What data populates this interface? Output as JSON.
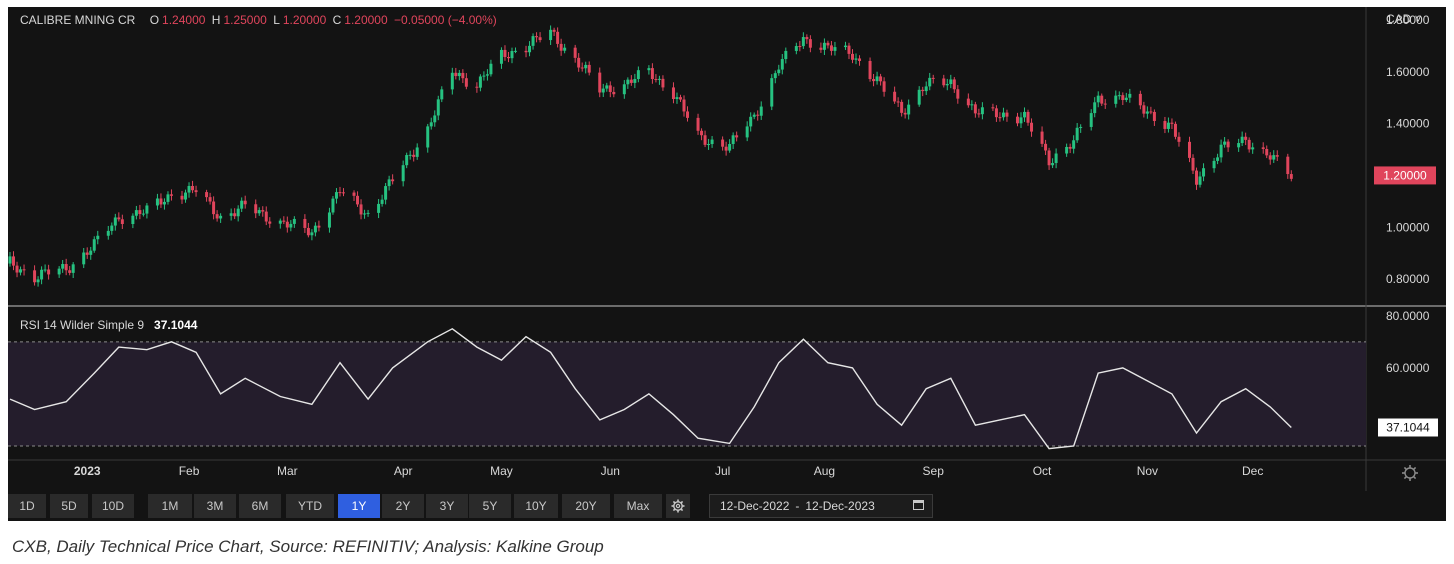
{
  "header": {
    "instrument": "CALIBRE MNING CR",
    "open_label": "O",
    "open": "1.24000",
    "high_label": "H",
    "high": "1.25000",
    "low_label": "L",
    "low": "1.20000",
    "close_label": "C",
    "close": "1.20000",
    "change": "−0.05000 (−4.00%)",
    "currency": "CAD ˅"
  },
  "rsi_header": {
    "label": "RSI 14 Wilder Simple 9",
    "value": "37.1044"
  },
  "colors": {
    "up": "#26c281",
    "down": "#e0455c",
    "background": "#131313",
    "rsi_band": "#241d2c",
    "price_tag": "#e0455c"
  },
  "toolbar": {
    "timeframes": [
      "1D",
      "5D",
      "10D",
      "1M",
      "3M",
      "6M",
      "YTD",
      "1Y",
      "2Y",
      "3Y",
      "5Y",
      "10Y",
      "20Y",
      "Max"
    ],
    "active": "1Y",
    "settings_icon": "gear-icon",
    "date_start": "12-Dec-2022",
    "date_sep": "-",
    "date_end": "12-Dec-2023",
    "calendar_icon": "calendar-icon"
  },
  "caption": "CXB, Daily Technical Price Chart, Source: REFINITIV; Analysis: Kalkine Group",
  "chart_data": [
    {
      "type": "candlestick",
      "title": "CALIBRE MNING CR",
      "y_ticks": [
        "0.80000",
        "1.00000",
        "1.20000",
        "1.40000",
        "1.60000",
        "1.80000"
      ],
      "ylim": [
        0.7,
        1.85
      ],
      "last_price_label": "1.20000",
      "x_ticks": [
        "2023",
        "Feb",
        "Mar",
        "Apr",
        "May",
        "Jun",
        "Jul",
        "Aug",
        "Sep",
        "Oct",
        "Nov",
        "Dec"
      ],
      "x_tick_dates": [
        "2023-01-03",
        "2023-02-01",
        "2023-03-01",
        "2023-04-03",
        "2023-05-01",
        "2023-06-01",
        "2023-07-03",
        "2023-08-01",
        "2023-09-01",
        "2023-10-02",
        "2023-11-01",
        "2023-12-01"
      ],
      "xlim": [
        "2022-12-12",
        "2023-12-31"
      ],
      "closes": [
        {
          "date": "2022-12-12",
          "close": 0.86
        },
        {
          "date": "2022-12-19",
          "close": 0.81
        },
        {
          "date": "2022-12-28",
          "close": 0.84
        },
        {
          "date": "2023-01-05",
          "close": 0.93
        },
        {
          "date": "2023-01-12",
          "close": 1.04
        },
        {
          "date": "2023-01-20",
          "close": 1.06
        },
        {
          "date": "2023-01-27",
          "close": 1.13
        },
        {
          "date": "2023-02-03",
          "close": 1.14
        },
        {
          "date": "2023-02-10",
          "close": 1.04
        },
        {
          "date": "2023-02-17",
          "close": 1.08
        },
        {
          "date": "2023-02-27",
          "close": 1.02
        },
        {
          "date": "2023-03-08",
          "close": 0.98
        },
        {
          "date": "2023-03-16",
          "close": 1.14
        },
        {
          "date": "2023-03-24",
          "close": 1.05
        },
        {
          "date": "2023-03-31",
          "close": 1.18
        },
        {
          "date": "2023-04-10",
          "close": 1.38
        },
        {
          "date": "2023-04-17",
          "close": 1.6
        },
        {
          "date": "2023-04-24",
          "close": 1.55
        },
        {
          "date": "2023-05-01",
          "close": 1.66
        },
        {
          "date": "2023-05-08",
          "close": 1.7
        },
        {
          "date": "2023-05-15",
          "close": 1.75
        },
        {
          "date": "2023-05-22",
          "close": 1.65
        },
        {
          "date": "2023-05-29",
          "close": 1.53
        },
        {
          "date": "2023-06-05",
          "close": 1.55
        },
        {
          "date": "2023-06-12",
          "close": 1.6
        },
        {
          "date": "2023-06-19",
          "close": 1.52
        },
        {
          "date": "2023-06-26",
          "close": 1.35
        },
        {
          "date": "2023-07-05",
          "close": 1.31
        },
        {
          "date": "2023-07-12",
          "close": 1.43
        },
        {
          "date": "2023-07-19",
          "close": 1.62
        },
        {
          "date": "2023-07-26",
          "close": 1.73
        },
        {
          "date": "2023-08-02",
          "close": 1.69
        },
        {
          "date": "2023-08-09",
          "close": 1.67
        },
        {
          "date": "2023-08-16",
          "close": 1.56
        },
        {
          "date": "2023-08-23",
          "close": 1.45
        },
        {
          "date": "2023-08-30",
          "close": 1.55
        },
        {
          "date": "2023-09-06",
          "close": 1.56
        },
        {
          "date": "2023-09-13",
          "close": 1.44
        },
        {
          "date": "2023-09-20",
          "close": 1.44
        },
        {
          "date": "2023-09-27",
          "close": 1.42
        },
        {
          "date": "2023-10-04",
          "close": 1.26
        },
        {
          "date": "2023-10-11",
          "close": 1.33
        },
        {
          "date": "2023-10-18",
          "close": 1.5
        },
        {
          "date": "2023-10-25",
          "close": 1.5
        },
        {
          "date": "2023-11-01",
          "close": 1.45
        },
        {
          "date": "2023-11-08",
          "close": 1.38
        },
        {
          "date": "2023-11-15",
          "close": 1.19
        },
        {
          "date": "2023-11-22",
          "close": 1.3
        },
        {
          "date": "2023-11-29",
          "close": 1.34
        },
        {
          "date": "2023-12-06",
          "close": 1.27
        },
        {
          "date": "2023-12-12",
          "close": 1.2
        }
      ]
    },
    {
      "type": "line",
      "title": "RSI 14 Wilder Simple 9",
      "y_ticks": [
        "60.0000",
        "80.0000"
      ],
      "ylim": [
        25,
        83
      ],
      "bands": [
        30,
        70
      ],
      "last_value_label": "37.1044",
      "x": [
        "2022-12-12",
        "2022-12-19",
        "2022-12-28",
        "2023-01-05",
        "2023-01-12",
        "2023-01-20",
        "2023-01-27",
        "2023-02-03",
        "2023-02-10",
        "2023-02-17",
        "2023-02-27",
        "2023-03-08",
        "2023-03-16",
        "2023-03-24",
        "2023-03-31",
        "2023-04-10",
        "2023-04-17",
        "2023-04-24",
        "2023-05-01",
        "2023-05-08",
        "2023-05-15",
        "2023-05-22",
        "2023-05-29",
        "2023-06-05",
        "2023-06-12",
        "2023-06-19",
        "2023-06-26",
        "2023-07-05",
        "2023-07-12",
        "2023-07-19",
        "2023-07-26",
        "2023-08-02",
        "2023-08-09",
        "2023-08-16",
        "2023-08-23",
        "2023-08-30",
        "2023-09-06",
        "2023-09-13",
        "2023-09-20",
        "2023-09-27",
        "2023-10-04",
        "2023-10-11",
        "2023-10-18",
        "2023-10-25",
        "2023-11-01",
        "2023-11-08",
        "2023-11-15",
        "2023-11-22",
        "2023-11-29",
        "2023-12-06",
        "2023-12-12"
      ],
      "values": [
        48,
        44,
        47,
        58,
        68,
        67,
        70,
        66,
        50,
        56,
        49,
        46,
        62,
        48,
        60,
        70,
        75,
        68,
        63,
        72,
        66,
        52,
        40,
        44,
        50,
        42,
        33,
        31,
        45,
        62,
        71,
        62,
        60,
        46,
        38,
        52,
        56,
        38,
        40,
        42,
        29,
        30,
        58,
        60,
        55,
        50,
        35,
        47,
        52,
        45,
        37.1
      ]
    }
  ]
}
